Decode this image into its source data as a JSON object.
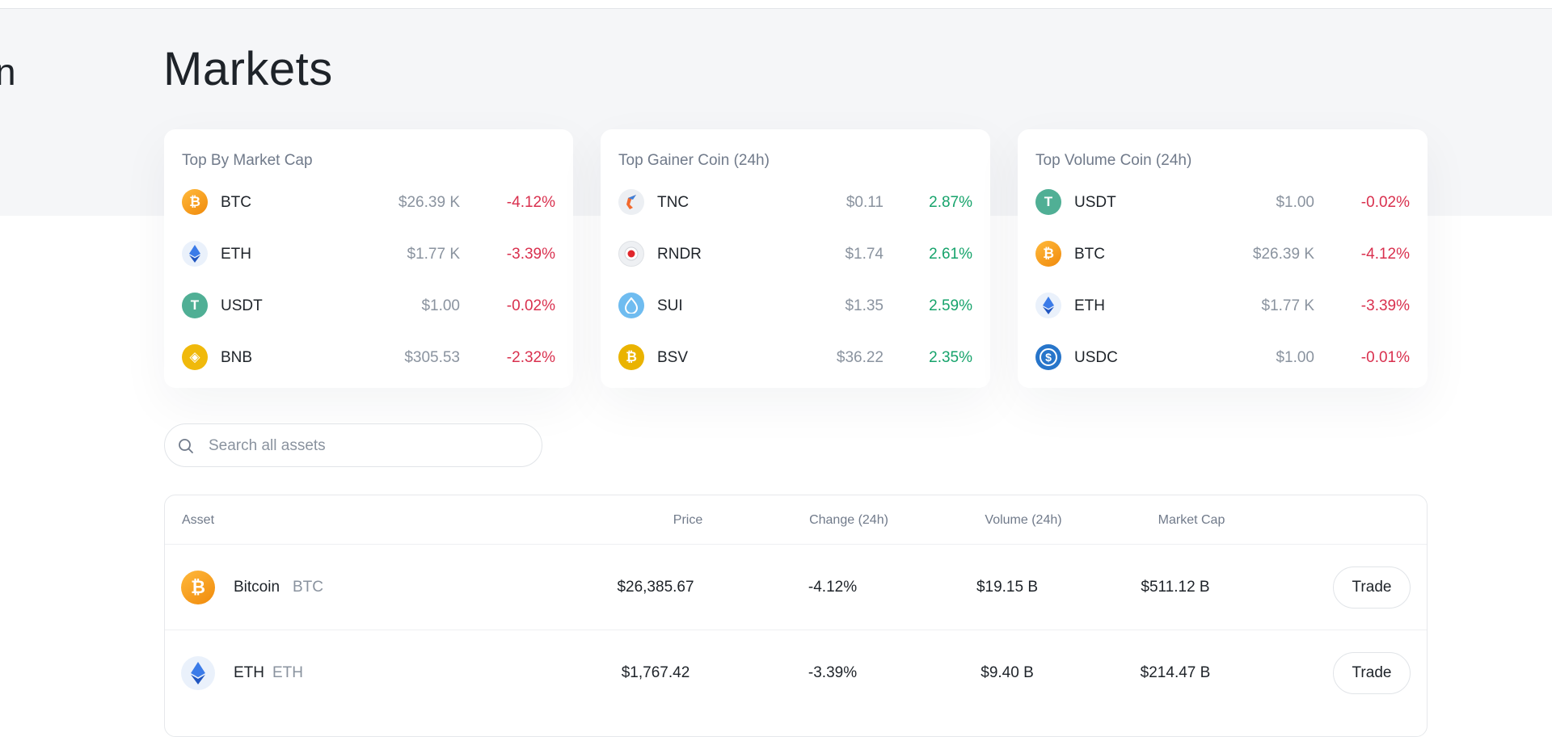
{
  "page_title": "Markets",
  "cards": [
    {
      "title": "Top By Market Cap",
      "rows": [
        {
          "symbol": "BTC",
          "price": "$26.39 K",
          "change": "-4.12%",
          "icon": "bitcoin-icon"
        },
        {
          "symbol": "ETH",
          "price": "$1.77 K",
          "change": "-3.39%",
          "icon": "ethereum-icon"
        },
        {
          "symbol": "USDT",
          "price": "$1.00",
          "change": "-0.02%",
          "icon": "tether-icon"
        },
        {
          "symbol": "BNB",
          "price": "$305.53",
          "change": "-2.32%",
          "icon": "bnb-icon"
        }
      ]
    },
    {
      "title": "Top Gainer Coin (24h)",
      "rows": [
        {
          "symbol": "TNC",
          "price": "$0.11",
          "change": "2.87%",
          "icon": "tnc-icon"
        },
        {
          "symbol": "RNDR",
          "price": "$1.74",
          "change": "2.61%",
          "icon": "render-icon"
        },
        {
          "symbol": "SUI",
          "price": "$1.35",
          "change": "2.59%",
          "icon": "sui-icon"
        },
        {
          "symbol": "BSV",
          "price": "$36.22",
          "change": "2.35%",
          "icon": "bitcoin-sv-icon"
        }
      ]
    },
    {
      "title": "Top Volume Coin (24h)",
      "rows": [
        {
          "symbol": "USDT",
          "price": "$1.00",
          "change": "-0.02%",
          "icon": "tether-icon"
        },
        {
          "symbol": "BTC",
          "price": "$26.39 K",
          "change": "-4.12%",
          "icon": "bitcoin-icon"
        },
        {
          "symbol": "ETH",
          "price": "$1.77 K",
          "change": "-3.39%",
          "icon": "ethereum-icon"
        },
        {
          "symbol": "USDC",
          "price": "$1.00",
          "change": "-0.01%",
          "icon": "usdc-icon"
        }
      ]
    }
  ],
  "search": {
    "placeholder": "Search all assets",
    "value": ""
  },
  "table": {
    "headers": {
      "asset": "Asset",
      "price": "Price",
      "change": "Change (24h)",
      "volume": "Volume (24h)",
      "market_cap": "Market Cap"
    },
    "rows": [
      {
        "name": "Bitcoin",
        "symbol": "BTC",
        "price": "$26,385.67",
        "change": "-4.12%",
        "volume": "$19.15 B",
        "market_cap": "$511.12 B",
        "action": "Trade"
      },
      {
        "name": "ETH",
        "symbol": "ETH",
        "price": "$1,767.42",
        "change": "-3.39%",
        "volume": "$9.40 B",
        "market_cap": "$214.47 B",
        "action": "Trade"
      }
    ]
  },
  "colors": {
    "negative": "#d9304e",
    "positive": "#16a36b",
    "background_hero": "#f5f6f8"
  }
}
